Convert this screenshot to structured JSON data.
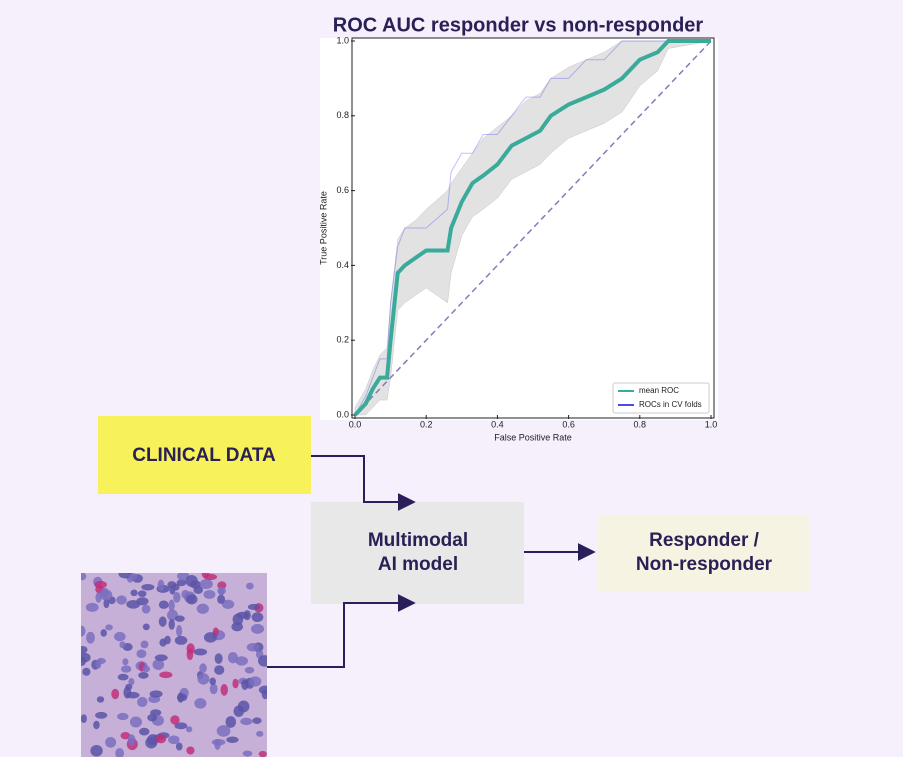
{
  "chart_data": {
    "type": "line",
    "title": "ROC AUC responder vs non-responder",
    "xlabel": "False Positive Rate",
    "ylabel": "True Positive Rate",
    "x": [
      0,
      0.03,
      0.05,
      0.07,
      0.09,
      0.1,
      0.12,
      0.14,
      0.17,
      0.2,
      0.26,
      0.27,
      0.3,
      0.33,
      0.36,
      0.4,
      0.44,
      0.48,
      0.52,
      0.55,
      0.6,
      0.65,
      0.7,
      0.75,
      0.8,
      0.85,
      0.88,
      1
    ],
    "series": [
      {
        "name": "mean ROC",
        "color": "#3aaa9a",
        "values": [
          0,
          0.03,
          0.07,
          0.1,
          0.1,
          0.2,
          0.38,
          0.4,
          0.42,
          0.44,
          0.44,
          0.5,
          0.57,
          0.62,
          0.64,
          0.67,
          0.72,
          0.74,
          0.76,
          0.8,
          0.83,
          0.85,
          0.87,
          0.9,
          0.95,
          0.97,
          1,
          1
        ]
      },
      {
        "name": "ROCs in CV folds",
        "color": "#4a4af0",
        "values": [
          0,
          0.05,
          0.1,
          0.15,
          0.15,
          0.3,
          0.45,
          0.5,
          0.5,
          0.5,
          0.55,
          0.65,
          0.7,
          0.7,
          0.75,
          0.75,
          0.8,
          0.85,
          0.85,
          0.9,
          0.9,
          0.95,
          0.95,
          1,
          1,
          1,
          1,
          1
        ]
      }
    ],
    "band": {
      "upper": [
        0.02,
        0.07,
        0.12,
        0.16,
        0.18,
        0.3,
        0.47,
        0.5,
        0.52,
        0.55,
        0.6,
        0.62,
        0.66,
        0.7,
        0.74,
        0.77,
        0.8,
        0.84,
        0.86,
        0.9,
        0.93,
        0.95,
        0.97,
        1,
        1,
        1,
        1,
        1
      ],
      "lower": [
        0,
        0,
        0.02,
        0.04,
        0.04,
        0.1,
        0.28,
        0.3,
        0.32,
        0.34,
        0.3,
        0.38,
        0.48,
        0.53,
        0.55,
        0.58,
        0.63,
        0.65,
        0.67,
        0.7,
        0.74,
        0.76,
        0.78,
        0.81,
        0.88,
        0.92,
        0.98,
        1
      ]
    },
    "xlim": [
      0,
      1
    ],
    "ylim": [
      0,
      1
    ],
    "xticks": [
      {
        "value": 0,
        "label": "0.0"
      },
      0.2,
      0.4,
      0.6,
      0.8,
      {
        "value": 1,
        "label": "1.0"
      }
    ],
    "yticks": [
      {
        "value": 0,
        "label": "0.0"
      },
      0.2,
      0.4,
      0.6,
      0.8,
      {
        "value": 1,
        "label": "1.0"
      }
    ],
    "legend": "lower right"
  },
  "nodes": [
    {
      "label": "CLINICAL DATA"
    },
    {
      "label": "Multimodal\nAI model"
    },
    {
      "label": "Responder /\nNon-responder"
    }
  ]
}
